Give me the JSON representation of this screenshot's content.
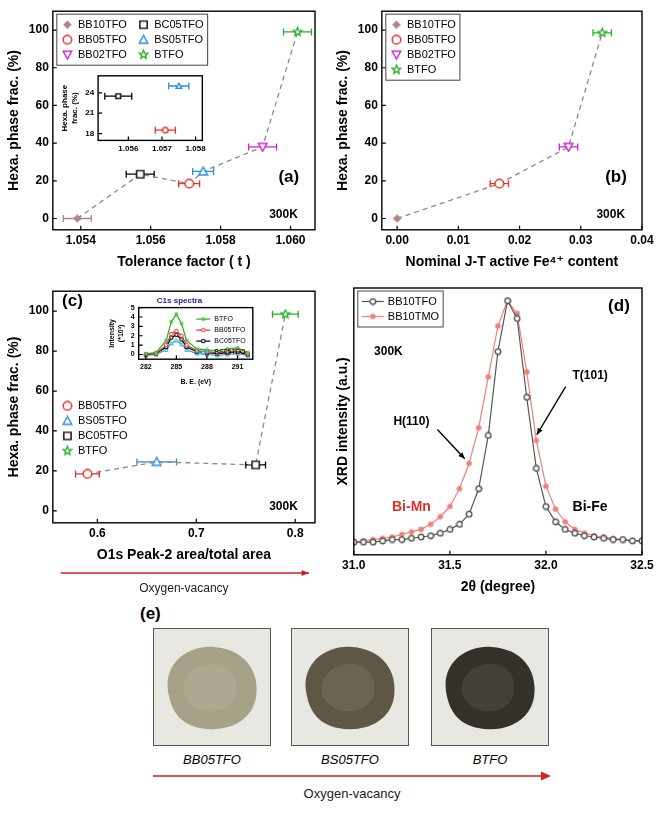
{
  "chart_data": [
    {
      "type": "scatter",
      "panel_label": "(a)",
      "x_label": "Tolerance factor ( t )",
      "y_label": "Hexa. phase frac. (%)",
      "annotations": [
        "300K"
      ],
      "xlim": [
        1.0532,
        1.0607
      ],
      "xticks": [
        1.054,
        1.056,
        1.058,
        {
          "value": 1.06,
          "label": "1.060"
        }
      ],
      "ylim": [
        -6,
        110
      ],
      "yticks": [
        0,
        20,
        40,
        60,
        80,
        100
      ],
      "grid": false,
      "legend": "upper left",
      "line_style": "dashed",
      "series": [
        {
          "name": "BB10TFO",
          "color": "#b48484",
          "marker": "filled_diamond",
          "x": [
            1.0539
          ],
          "values": [
            0
          ],
          "xerr": [
            0.0004
          ]
        },
        {
          "name": "BC05TFO",
          "color": "#000000",
          "marker": "open_square",
          "x": [
            1.0557
          ],
          "values": [
            23.5
          ],
          "xerr": [
            0.0004
          ]
        },
        {
          "name": "BB05TFO",
          "color": "#e8302a",
          "marker": "open_circle",
          "x": [
            1.0571
          ],
          "values": [
            18.5
          ],
          "xerr": [
            0.0003
          ]
        },
        {
          "name": "BS05TFO",
          "color": "#2b8de0",
          "marker": "open_triangle_up",
          "x": [
            1.0575
          ],
          "values": [
            25
          ],
          "xerr": [
            0.0003
          ]
        },
        {
          "name": "BB02TFO",
          "color": "#cc22cc",
          "marker": "open_triangle_down",
          "x": [
            1.0592
          ],
          "values": [
            38
          ],
          "xerr": [
            0.0004
          ]
        },
        {
          "name": "BTFO",
          "color": "#22b022",
          "marker": "open_star",
          "x": [
            1.0602
          ],
          "values": [
            99
          ],
          "xerr": [
            0.0004
          ]
        }
      ]
    },
    {
      "type": "scatter",
      "y_label": "Hexa. phase frac. (%)",
      "xlim": [
        1.0551,
        1.0582
      ],
      "xticks": [
        1.056,
        1.057,
        1.058
      ],
      "ylim": [
        17,
        26.5
      ],
      "yticks": [
        18,
        21,
        24
      ],
      "grid": false,
      "series": [
        {
          "color": "#000000",
          "marker": "open_square",
          "x": [
            1.0557
          ],
          "values": [
            23.5
          ],
          "xerr": [
            0.0004
          ]
        },
        {
          "color": "#e8302a",
          "marker": "open_circle",
          "x": [
            1.0571
          ],
          "values": [
            18.5
          ],
          "xerr": [
            0.0003
          ]
        },
        {
          "color": "#2b8de0",
          "marker": "open_triangle_up",
          "x": [
            1.0575
          ],
          "values": [
            25
          ],
          "xerr": [
            0.0003
          ]
        }
      ]
    },
    {
      "type": "scatter",
      "panel_label": "(b)",
      "x_label": "Nominal J-T active Fe⁴⁺ content",
      "y_label": "Hexa. phase frac. (%)",
      "annotations": [
        "300K"
      ],
      "xlim": [
        -0.0025,
        0.04
      ],
      "xticks": [
        {
          "value": 0,
          "label": "0.00"
        },
        0.01,
        0.02,
        0.03,
        0.04
      ],
      "ylim": [
        -6,
        110
      ],
      "yticks": [
        0,
        20,
        40,
        60,
        80,
        100
      ],
      "grid": false,
      "legend": "upper left",
      "line_style": "dashed",
      "series": [
        {
          "name": "BB10TFO",
          "color": "#b48484",
          "marker": "filled_diamond",
          "x": [
            0
          ],
          "values": [
            0
          ]
        },
        {
          "name": "BB05TFO",
          "color": "#e8302a",
          "marker": "open_circle",
          "x": [
            0.0167
          ],
          "values": [
            18.5
          ],
          "xerr": [
            0.0015
          ]
        },
        {
          "name": "BB02TFO",
          "color": "#cc22cc",
          "marker": "open_triangle_down",
          "x": [
            0.028
          ],
          "values": [
            38
          ],
          "xerr": [
            0.0015
          ]
        },
        {
          "name": "BTFO",
          "color": "#22b022",
          "marker": "open_star",
          "x": [
            0.0335
          ],
          "values": [
            98.5
          ],
          "xerr": [
            0.0015
          ]
        }
      ]
    },
    {
      "type": "scatter",
      "panel_label": "(c)",
      "x_label": "O1s Peak-2 area/total area",
      "y_label": "Hexa. phase frac. (%)",
      "annotations": [
        "300K"
      ],
      "x_arrow_label": "Oxygen-vacancy",
      "xlim": [
        0.555,
        0.82
      ],
      "xticks": [
        0.6,
        0.7,
        0.8
      ],
      "ylim": [
        -6,
        110
      ],
      "yticks": [
        0,
        20,
        40,
        60,
        80,
        100
      ],
      "grid": false,
      "legend": "center left",
      "line_style": "dashed",
      "series": [
        {
          "name": "BB05TFO",
          "color": "#e8302a",
          "marker": "open_circle",
          "x": [
            0.59
          ],
          "values": [
            18.5
          ],
          "xerr": [
            0.012
          ]
        },
        {
          "name": "BS05TFO",
          "color": "#2b8de0",
          "marker": "open_triangle_up",
          "x": [
            0.66
          ],
          "values": [
            24.5
          ],
          "xerr": [
            0.02
          ]
        },
        {
          "name": "BC05TFO",
          "color": "#000000",
          "marker": "open_square",
          "x": [
            0.76
          ],
          "values": [
            23
          ],
          "xerr": [
            0.01
          ]
        },
        {
          "name": "BTFO",
          "color": "#22b022",
          "marker": "open_star",
          "x": [
            0.79
          ],
          "values": [
            98.5
          ],
          "xerr": [
            0.013
          ]
        }
      ]
    },
    {
      "type": "line",
      "title": "C1s spectra",
      "x_label": "B. E. (eV)",
      "y_label": "Intensity (*10³)",
      "xlim": [
        281.3,
        292.5
      ],
      "xticks": [
        282,
        285,
        288,
        291
      ],
      "ylim": [
        -0.5,
        5
      ],
      "yticks": [
        0,
        1,
        2,
        3,
        4,
        5
      ],
      "grid": false,
      "legend": "upper right",
      "x": [
        282,
        283,
        284,
        284.5,
        285,
        285.5,
        286,
        287,
        288,
        289,
        290,
        291,
        292
      ],
      "series": [
        {
          "name": "BTFO",
          "color": "#22b022",
          "marker": "open_star",
          "values": [
            0.1,
            0.2,
            1.5,
            3.5,
            4.3,
            3.3,
            1.5,
            0.6,
            0.5,
            0.4,
            0.6,
            0.7,
            0.2
          ]
        },
        {
          "name": "BB05TFO",
          "color": "#e8302a",
          "marker": "open_circle",
          "values": [
            0.0,
            0.1,
            1.0,
            2.2,
            2.5,
            2.0,
            1.0,
            0.4,
            0.3,
            0.2,
            0.3,
            0.4,
            0.1
          ]
        },
        {
          "name": "BC05TFO",
          "color": "#000000",
          "marker": "open_square",
          "values": [
            0.0,
            0.1,
            0.8,
            1.8,
            2.1,
            1.6,
            0.8,
            0.3,
            0.2,
            0.1,
            0.2,
            0.3,
            0.0
          ]
        },
        {
          "name": "BS05TFO",
          "color": "#29a8e0",
          "marker": "open_triangle_up",
          "values": [
            -0.1,
            0.0,
            0.5,
            1.2,
            1.5,
            1.1,
            0.5,
            0.1,
            0.0,
            -0.1,
            0.0,
            0.1,
            -0.1
          ]
        }
      ]
    },
    {
      "type": "line",
      "panel_label": "(d)",
      "x_label": "2θ (degree)",
      "y_label": "XRD intensity (a.u.)",
      "annotations": [
        "300K",
        "H(110)",
        "T(101)",
        "Bi-Mn",
        "Bi-Fe"
      ],
      "xlim": [
        31,
        32.5
      ],
      "xticks": [
        {
          "value": 31,
          "label": "31.0"
        },
        31.5,
        {
          "value": 32,
          "label": "32.0"
        },
        32.5
      ],
      "ylim": [
        0,
        1.05
      ],
      "tick_labels": "x",
      "grid": false,
      "legend": "upper left",
      "x": [
        31.0,
        31.05,
        31.1,
        31.15,
        31.2,
        31.25,
        31.3,
        31.35,
        31.4,
        31.45,
        31.5,
        31.55,
        31.6,
        31.65,
        31.7,
        31.75,
        31.8,
        31.85,
        31.9,
        31.95,
        32.0,
        32.05,
        32.1,
        32.15,
        32.2,
        32.25,
        32.3,
        32.35,
        32.4,
        32.45,
        32.5
      ],
      "series": [
        {
          "name": "BB10TFO",
          "color": "#555555",
          "marker": "open_circle",
          "values": [
            0.05,
            0.05,
            0.05,
            0.055,
            0.06,
            0.06,
            0.065,
            0.07,
            0.075,
            0.085,
            0.1,
            0.12,
            0.16,
            0.26,
            0.47,
            0.8,
            1.0,
            0.93,
            0.62,
            0.34,
            0.19,
            0.13,
            0.1,
            0.085,
            0.075,
            0.07,
            0.065,
            0.06,
            0.06,
            0.055,
            0.055
          ]
        },
        {
          "name": "BB10TMO",
          "color": "#f2807a",
          "marker": "filled_circle",
          "values": [
            0.05,
            0.055,
            0.06,
            0.065,
            0.07,
            0.08,
            0.09,
            0.1,
            0.12,
            0.15,
            0.19,
            0.26,
            0.36,
            0.5,
            0.7,
            0.9,
            1.0,
            0.95,
            0.72,
            0.45,
            0.27,
            0.18,
            0.13,
            0.1,
            0.085,
            0.075,
            0.07,
            0.065,
            0.06,
            0.055,
            0.055
          ]
        }
      ]
    }
  ],
  "photo_panel": {
    "panel_label": "(e)",
    "samples": [
      {
        "label": "BB05TFO",
        "color": "#a6a288"
      },
      {
        "label": "BS05TFO",
        "color": "#5f5746"
      },
      {
        "label": "BTFO",
        "color": "#34302a"
      }
    ],
    "arrow_label": "Oxygen-vacancy"
  }
}
